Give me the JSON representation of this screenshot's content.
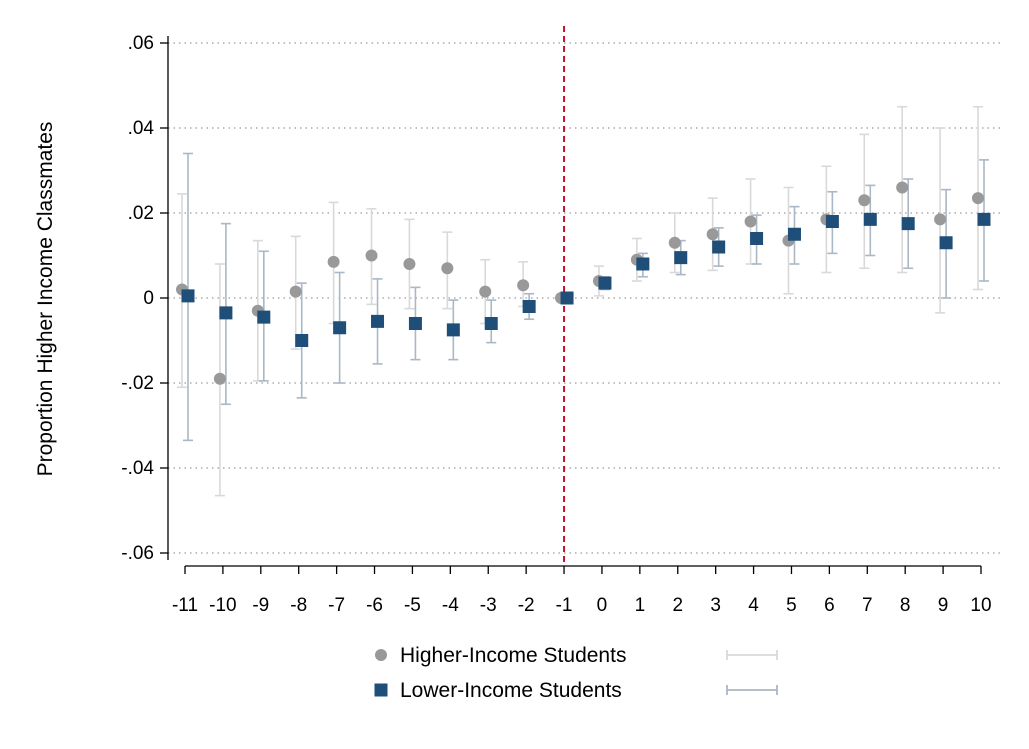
{
  "chart_data": {
    "type": "scatter",
    "title": "",
    "xlabel": "",
    "ylabel": "Proportion Higher Income Classmates",
    "x": [
      -11,
      -10,
      -9,
      -8,
      -7,
      -6,
      -5,
      -4,
      -3,
      -2,
      -1,
      0,
      1,
      2,
      3,
      4,
      5,
      6,
      7,
      8,
      9,
      10
    ],
    "x_tick_labels": [
      "-11",
      "-10",
      "-9",
      "-8",
      "-7",
      "-6",
      "-5",
      "-4",
      "-3",
      "-2",
      "-1",
      "0",
      "1",
      "2",
      "3",
      "4",
      "5",
      "6",
      "7",
      "8",
      "9",
      "10"
    ],
    "y_ticks": [
      0.06,
      0.04,
      0.02,
      0,
      -0.02,
      -0.04,
      -0.06
    ],
    "y_tick_labels": [
      ".06",
      ".04",
      ".02",
      "0",
      "-.02",
      "-.04",
      "-.06"
    ],
    "xlim": [
      -11,
      10
    ],
    "ylim": [
      -0.062,
      0.062
    ],
    "grid": "horizontal dotted",
    "reference_line": {
      "x": -1,
      "color": "#c8102e",
      "style": "dashed"
    },
    "legend_position": "bottom",
    "series": [
      {
        "name": "Higher-Income Students",
        "marker": "circle",
        "color": "#999999",
        "ci_color": "#d9d9d9",
        "values": [
          0.002,
          -0.019,
          -0.003,
          0.0015,
          0.0085,
          0.01,
          0.008,
          0.007,
          0.0015,
          0.003,
          0,
          0.004,
          0.009,
          0.013,
          0.015,
          0.018,
          0.0135,
          0.0185,
          0.023,
          0.026,
          0.0185,
          0.0235
        ],
        "ci_low": [
          -0.021,
          -0.0465,
          -0.0195,
          -0.012,
          -0.006,
          -0.0015,
          -0.0025,
          -0.0025,
          -0.006,
          -0.002,
          0,
          0.0005,
          0.004,
          0.006,
          0.0065,
          0.008,
          0.001,
          0.006,
          0.007,
          0.006,
          -0.0035,
          0.002
        ],
        "ci_high": [
          0.0245,
          0.008,
          0.0135,
          0.0145,
          0.0225,
          0.021,
          0.0185,
          0.0155,
          0.009,
          0.0085,
          0,
          0.0075,
          0.014,
          0.02,
          0.0235,
          0.028,
          0.026,
          0.031,
          0.0385,
          0.045,
          0.04,
          0.045
        ]
      },
      {
        "name": "Lower-Income Students",
        "marker": "square",
        "color": "#1f4e79",
        "ci_color": "#a9b7c6",
        "values": [
          0.0005,
          -0.0035,
          -0.0045,
          -0.01,
          -0.007,
          -0.0055,
          -0.006,
          -0.0075,
          -0.006,
          -0.002,
          0,
          0.0035,
          0.008,
          0.0095,
          0.012,
          0.014,
          0.015,
          0.018,
          0.0185,
          0.0175,
          0.013,
          0.0185
        ],
        "ci_low": [
          -0.0335,
          -0.025,
          -0.0195,
          -0.0235,
          -0.02,
          -0.0155,
          -0.0145,
          -0.0145,
          -0.0105,
          -0.005,
          0,
          0.002,
          0.005,
          0.0055,
          0.0075,
          0.008,
          0.008,
          0.0105,
          0.01,
          0.007,
          0,
          0.004
        ],
        "ci_high": [
          0.034,
          0.0175,
          0.011,
          0.0035,
          0.006,
          0.0045,
          0.0025,
          -0.0005,
          -0.0005,
          0.001,
          0,
          0.005,
          0.0105,
          0.0135,
          0.0165,
          0.0195,
          0.0215,
          0.025,
          0.0265,
          0.028,
          0.0255,
          0.0325
        ]
      }
    ]
  }
}
